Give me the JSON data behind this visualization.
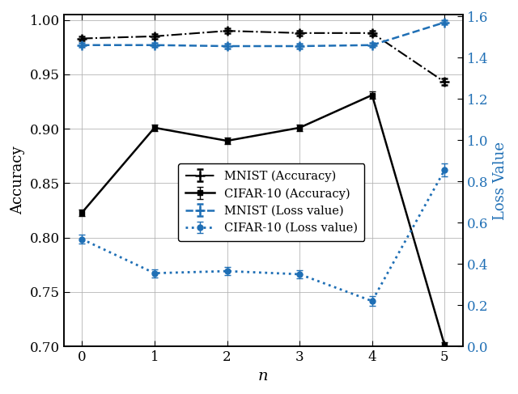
{
  "x": [
    0,
    1,
    2,
    3,
    4,
    5
  ],
  "mnist_accuracy": [
    0.983,
    0.985,
    0.99,
    0.988,
    0.988,
    0.943
  ],
  "mnist_accuracy_err": [
    0.002,
    0.002,
    0.002,
    0.002,
    0.002,
    0.003
  ],
  "cifar_accuracy": [
    0.823,
    0.901,
    0.889,
    0.901,
    0.931,
    0.701
  ],
  "cifar_accuracy_err": [
    0.003,
    0.003,
    0.003,
    0.003,
    0.003,
    0.003
  ],
  "mnist_loss": [
    1.46,
    1.46,
    1.455,
    1.455,
    1.46,
    1.57
  ],
  "mnist_loss_err": [
    0.01,
    0.01,
    0.01,
    0.01,
    0.01,
    0.01
  ],
  "cifar_loss": [
    0.52,
    0.355,
    0.365,
    0.35,
    0.22,
    0.855
  ],
  "cifar_loss_err": [
    0.02,
    0.02,
    0.02,
    0.02,
    0.025,
    0.03
  ],
  "xlabel": "n",
  "ylabel_left": "Accuracy",
  "ylabel_right": "Loss Value",
  "xlim": [
    -0.25,
    5.25
  ],
  "ylim_left": [
    0.7,
    1.005
  ],
  "ylim_right": [
    0.0,
    1.608
  ],
  "yticks_left": [
    0.7,
    0.75,
    0.8,
    0.85,
    0.9,
    0.95,
    1.0
  ],
  "yticks_right": [
    0.0,
    0.2,
    0.4,
    0.6,
    0.8,
    1.0,
    1.2,
    1.4,
    1.6
  ],
  "legend_labels": [
    "MNIST (Accuracy)",
    "CIFAR-10 (Accuracy)",
    "MNIST (Loss value)",
    "CIFAR-10 (Loss value)"
  ],
  "black_color": "#000000",
  "blue_color": "#1f6fb5",
  "grid_color": "#b0b0b0"
}
